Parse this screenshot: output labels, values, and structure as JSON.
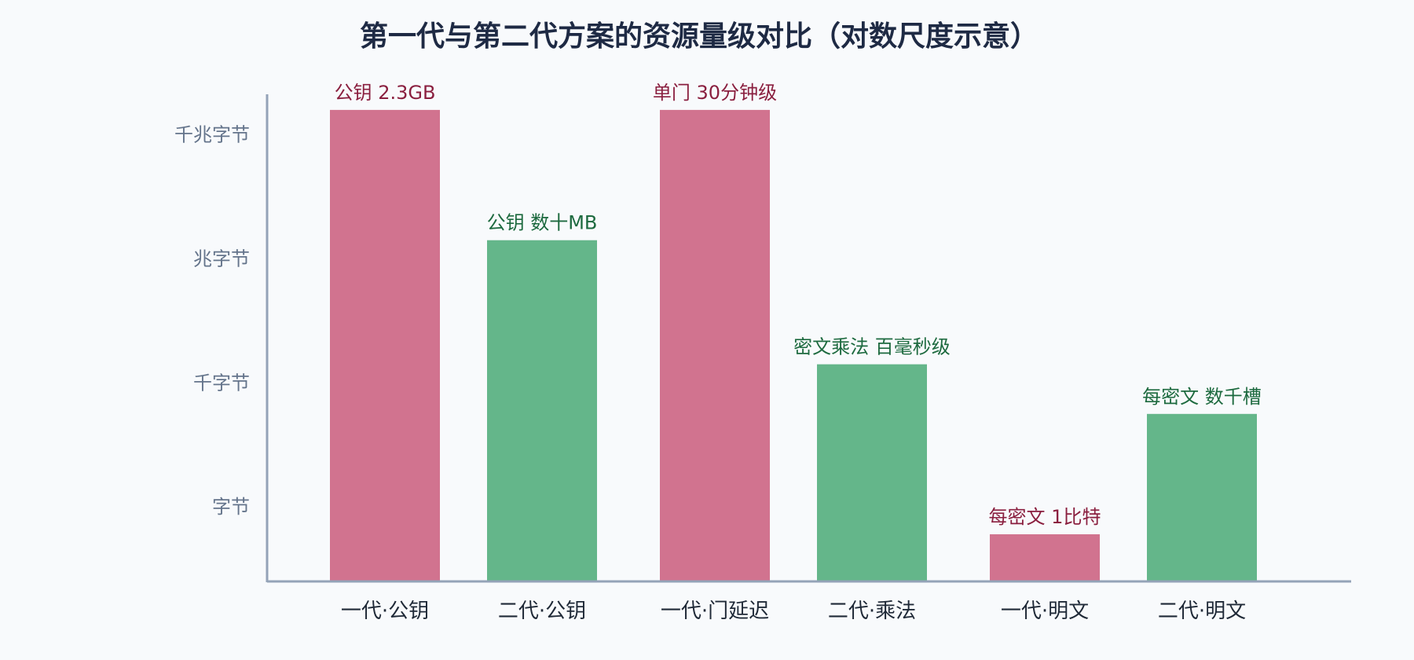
{
  "chart_data": {
    "type": "bar",
    "title": "第一代与第二代方案的资源量级对比（对数尺度示意）",
    "xlabel": "",
    "ylabel": "",
    "yscale": "log",
    "grid": false,
    "legend": "none",
    "y_ticks": [
      {
        "label": "字节",
        "level": 1
      },
      {
        "label": "千字节",
        "level": 2
      },
      {
        "label": "兆字节",
        "level": 3
      },
      {
        "label": "千兆字节",
        "level": 4
      }
    ],
    "ylim": [
      0.4,
      4.25
    ],
    "categories": [
      "一代·公钥",
      "二代·公钥",
      "一代·门延迟",
      "二代·乘法",
      "一代·明文",
      "二代·明文"
    ],
    "values": [
      4.2,
      3.15,
      4.2,
      2.15,
      0.78,
      1.75
    ],
    "data_labels": [
      "公钥 2.3GB",
      "公钥 数十MB",
      "单门 30分钟级",
      "密文乘法 百毫秒级",
      "每密文 1比特",
      "每密文 数千槽"
    ],
    "generation": [
      "一代",
      "二代",
      "一代",
      "二代",
      "一代",
      "二代"
    ],
    "colors": {
      "一代": "#d1738f",
      "二代": "#64b68a",
      "一代_label": "#8a1f3f",
      "二代_label": "#1d6a3f"
    }
  }
}
